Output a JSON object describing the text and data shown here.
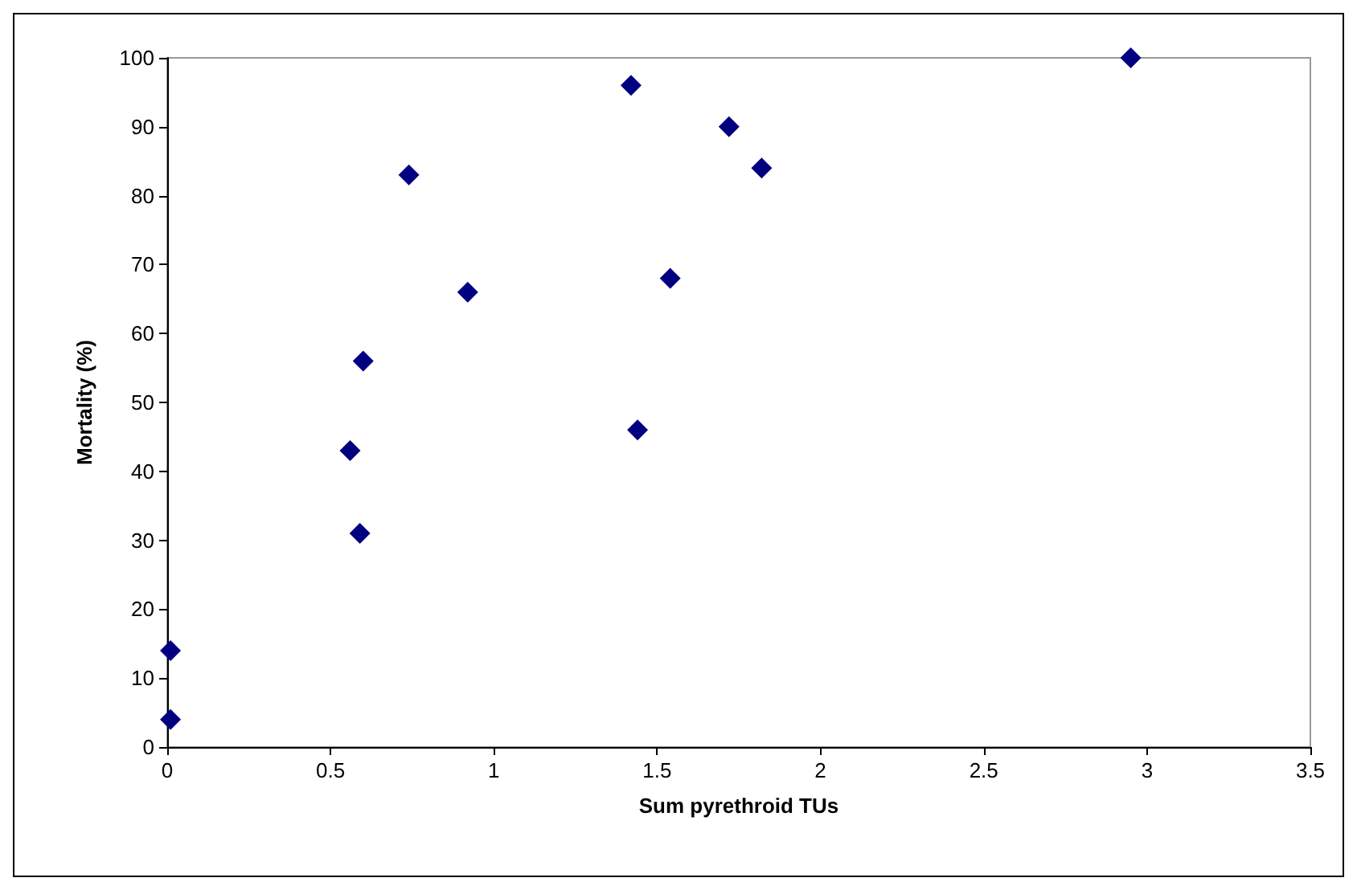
{
  "chart_data": {
    "type": "scatter",
    "xlabel": "Sum pyrethroid TUs",
    "ylabel": "Mortality (%)",
    "x": [
      0.01,
      0.01,
      0.56,
      0.59,
      0.6,
      0.74,
      0.92,
      1.42,
      1.44,
      1.54,
      1.72,
      1.82,
      2.95
    ],
    "series": [
      {
        "color": "#000080",
        "values": [
          14,
          4,
          43,
          31,
          56,
          83,
          66,
          96,
          46,
          68,
          90,
          84,
          100
        ]
      }
    ],
    "xlim": [
      0,
      3.5
    ],
    "xticks": [
      0,
      0.5,
      1,
      1.5,
      2,
      2.5,
      3,
      3.5
    ],
    "ylim": [
      0,
      100
    ],
    "yticks": [
      0,
      10,
      20,
      30,
      40,
      50,
      60,
      70,
      80,
      90,
      100
    ],
    "marker": "diamond"
  }
}
